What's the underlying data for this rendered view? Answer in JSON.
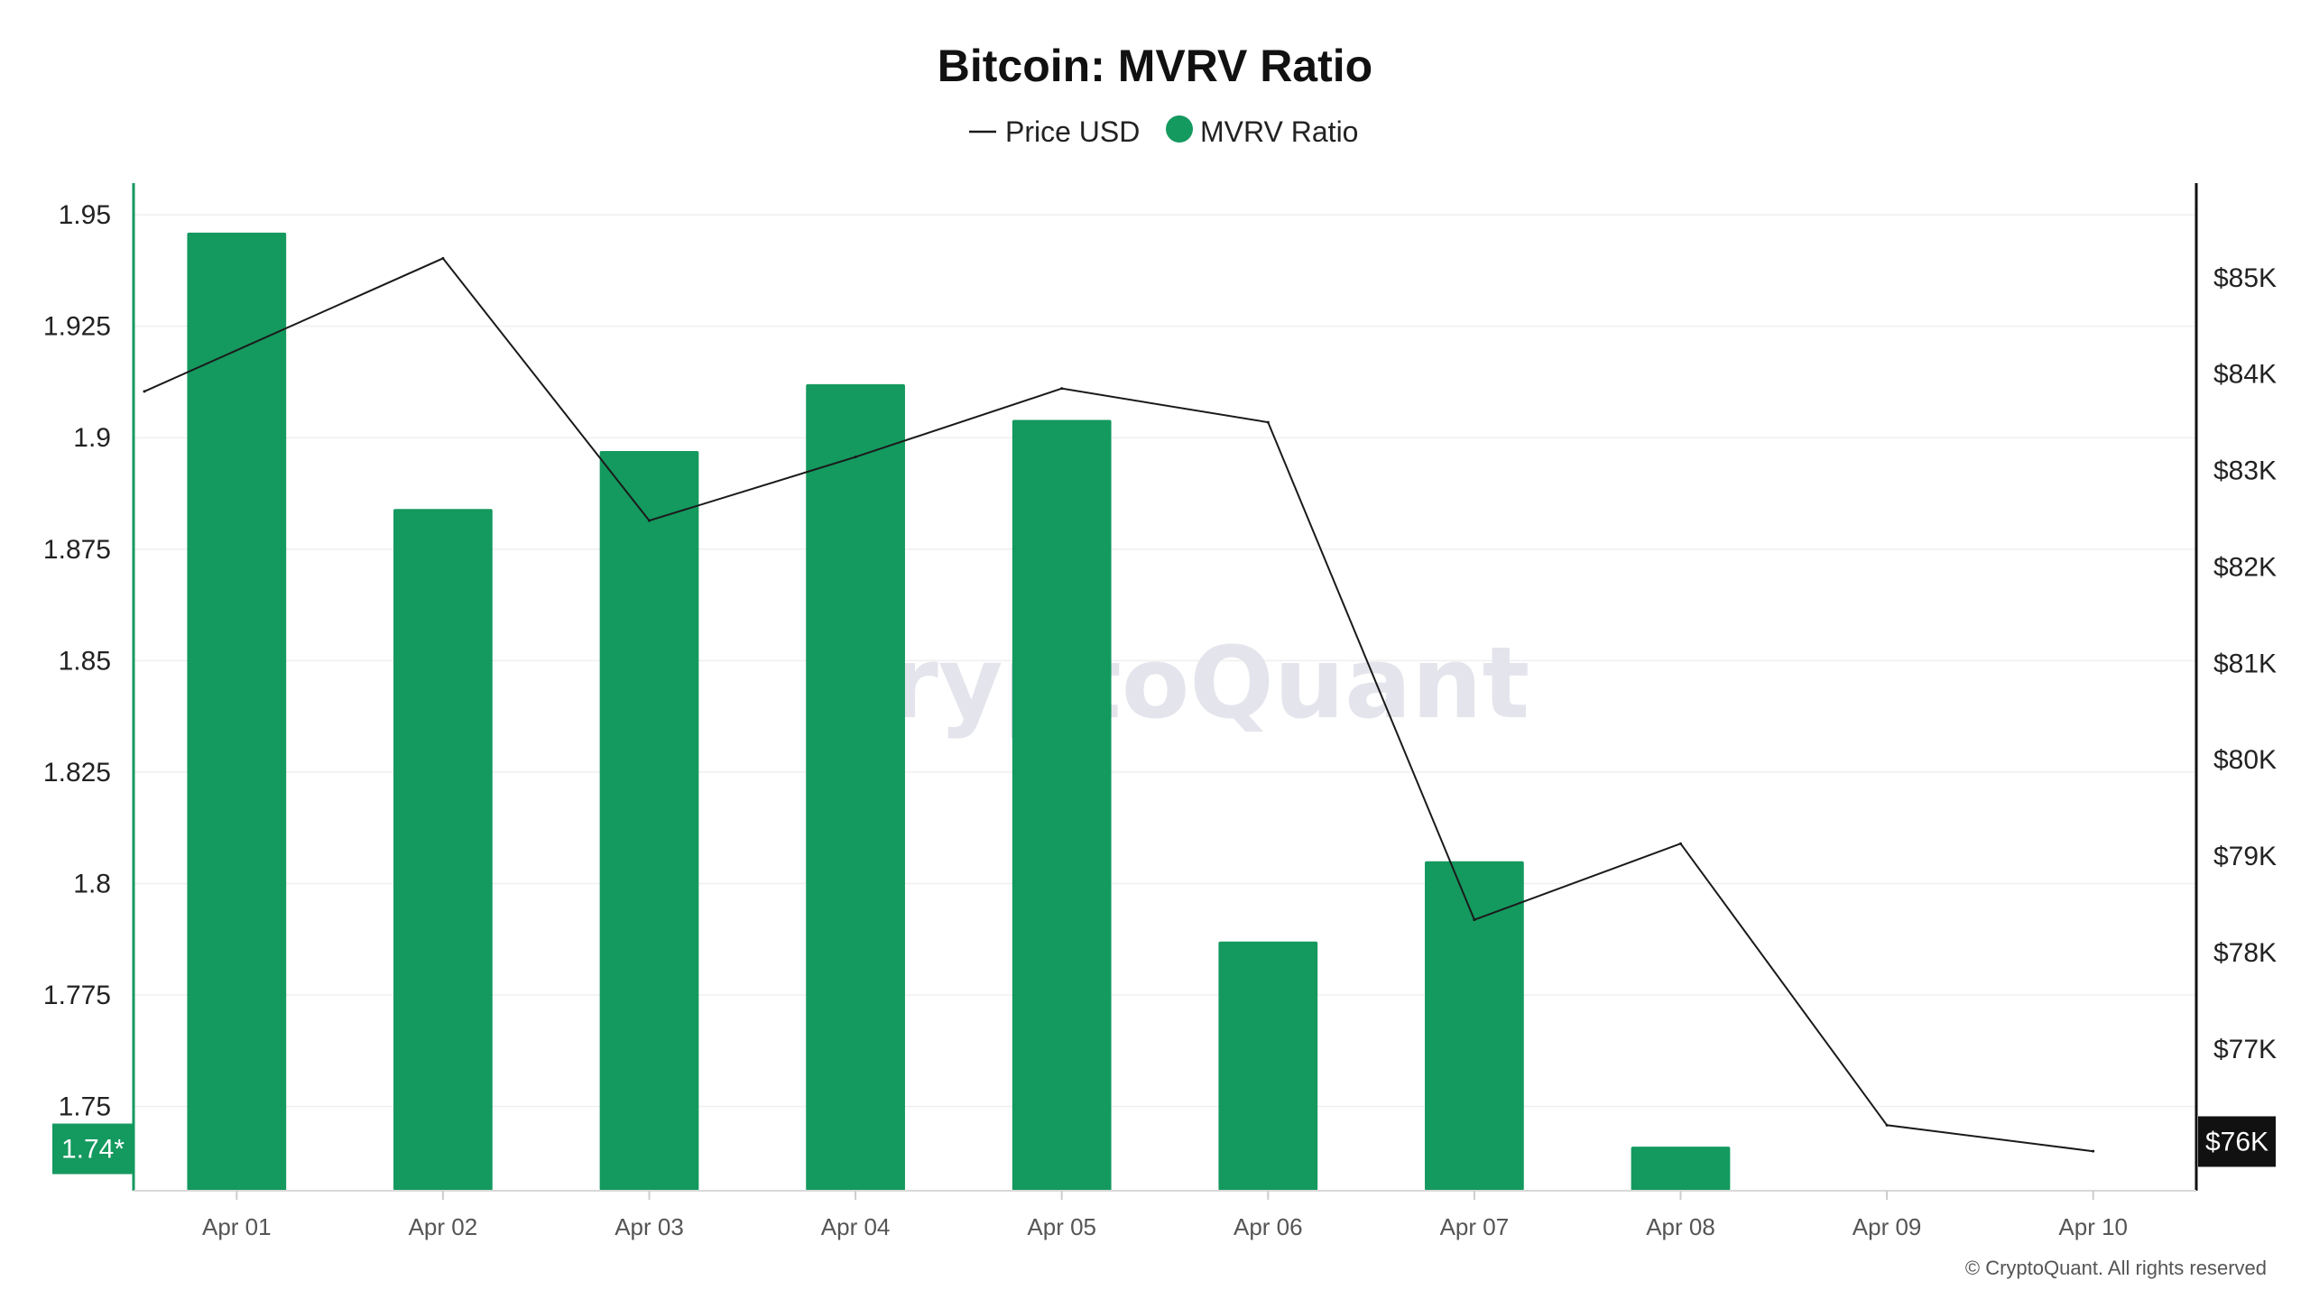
{
  "chart_data": {
    "type": "bar",
    "title": "Bitcoin: MVRV Ratio",
    "legend": {
      "placement": "top-center",
      "items": [
        {
          "label": "Price USD",
          "marker": "line",
          "color": "#1a1a1a"
        },
        {
          "label": "MVRV Ratio",
          "marker": "dot",
          "color": "#14995f"
        }
      ]
    },
    "categories": [
      "Apr 01",
      "Apr 02",
      "Apr 03",
      "Apr 04",
      "Apr 05",
      "Apr 06",
      "Apr 07",
      "Apr 08",
      "Apr 09",
      "Apr 10"
    ],
    "series": [
      {
        "name": "MVRV Ratio",
        "type": "bar",
        "axis": "left",
        "color": "#14995f",
        "values": [
          1.946,
          1.884,
          1.897,
          1.912,
          1.904,
          1.787,
          1.805,
          1.741,
          null,
          null
        ]
      },
      {
        "name": "Price USD",
        "type": "line",
        "axis": "right",
        "color": "#1a1a1a",
        "x": [
          0.5,
          1,
          2,
          3,
          4,
          5,
          6,
          7,
          8,
          9
        ],
        "values": [
          83820,
          85200,
          82480,
          83140,
          83850,
          83500,
          78340,
          79130,
          76210,
          75940
        ]
      }
    ],
    "left_axis": {
      "range": [
        1.7311,
        1.9571
      ],
      "ticks": [
        1.95,
        1.925,
        1.9,
        1.875,
        1.85,
        1.825,
        1.8,
        1.775,
        1.75
      ],
      "tick_labels": [
        "1.95",
        "1.925",
        "1.9",
        "1.875",
        "1.85",
        "1.825",
        "1.8",
        "1.775",
        "1.75"
      ],
      "current_label": "1.74*",
      "current_value": 1.7405,
      "color": "#14995f"
    },
    "right_axis": {
      "range": [
        75530,
        85980
      ],
      "ticks": [
        85000,
        84000,
        83000,
        82000,
        81000,
        80000,
        79000,
        78000,
        77000
      ],
      "tick_labels": [
        "$85K",
        "$84K",
        "$83K",
        "$82K",
        "$81K",
        "$80K",
        "$79K",
        "$78K",
        "$77K"
      ],
      "current_label": "$76K",
      "current_value": 76040,
      "color": "#111111"
    },
    "grid": true,
    "watermark": "CryptoQuant",
    "copyright": "© CryptoQuant. All rights reserved"
  }
}
